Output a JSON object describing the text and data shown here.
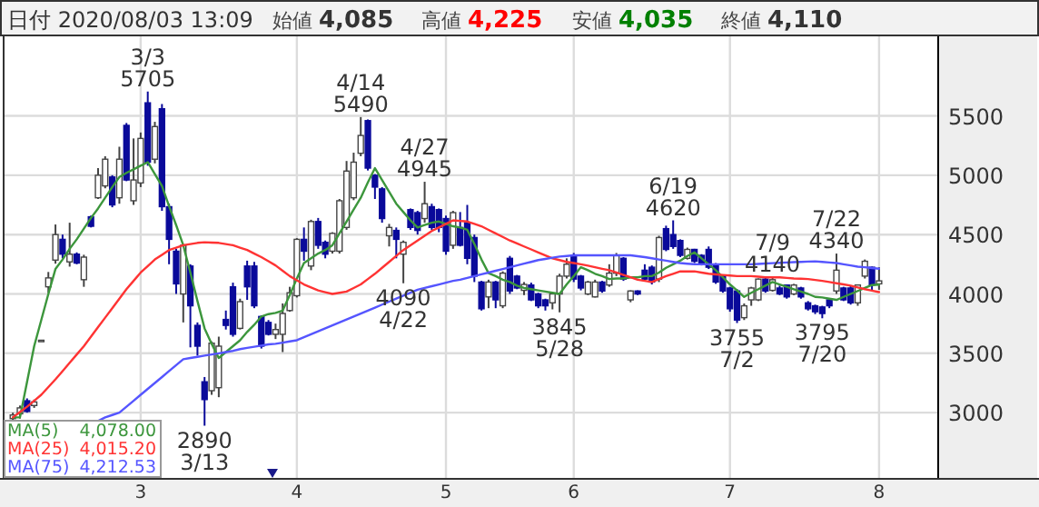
{
  "chart_data": {
    "type": "candlestick",
    "title": "日付 2020/08/03 13:09",
    "categories": [
      null,
      null,
      null,
      null,
      null,
      null,
      null,
      null,
      null,
      null,
      null,
      null,
      null,
      null,
      null,
      null,
      null,
      null,
      "3",
      null,
      null,
      null,
      null,
      null,
      null,
      null,
      null,
      null,
      null,
      null,
      null,
      null,
      null,
      null,
      null,
      null,
      null,
      null,
      null,
      null,
      "4",
      null,
      null,
      null,
      null,
      null,
      null,
      null,
      null,
      null,
      null,
      null,
      null,
      null,
      null,
      null,
      null,
      null,
      null,
      null,
      null,
      "5",
      null,
      null,
      null,
      null,
      null,
      null,
      null,
      null,
      null,
      null,
      null,
      null,
      null,
      null,
      null,
      null,
      null,
      "6",
      null,
      null,
      null,
      null,
      null,
      null,
      null,
      null,
      null,
      null,
      null,
      null,
      null,
      null,
      null,
      null,
      null,
      null,
      null,
      null,
      null,
      "7",
      null,
      null,
      null,
      null,
      null,
      null,
      null,
      null,
      null,
      null,
      null,
      null,
      null,
      null,
      null,
      null,
      null,
      null,
      null,
      null,
      "8"
    ],
    "ohlc": [
      [
        2950,
        3000,
        2930,
        2980
      ],
      [
        2990,
        3060,
        2950,
        3040
      ],
      [
        3100,
        3120,
        3000,
        3010
      ],
      [
        3060,
        3110,
        3040,
        3090
      ],
      [
        3610,
        3610,
        3610,
        3610
      ],
      [
        4060,
        4185,
        4010,
        4135
      ],
      [
        4285,
        4585,
        4255,
        4500
      ],
      [
        4460,
        4500,
        4300,
        4335
      ],
      [
        4270,
        4600,
        4230,
        4335
      ],
      [
        4335,
        4350,
        4250,
        4260
      ],
      [
        4120,
        4330,
        4060,
        4310
      ],
      [
        4650,
        4660,
        4560,
        4570
      ],
      [
        4810,
        5060,
        4800,
        5000
      ],
      [
        4910,
        5160,
        4890,
        5135
      ],
      [
        4985,
        5000,
        4730,
        4750
      ],
      [
        4810,
        5240,
        4760,
        5135
      ],
      [
        5420,
        5440,
        4950,
        4960
      ],
      [
        4785,
        5310,
        4750,
        4960
      ],
      [
        4935,
        5360,
        4900,
        5310
      ],
      [
        5610,
        5705,
        5080,
        5110
      ],
      [
        5135,
        5450,
        5100,
        5410
      ],
      [
        5560,
        5600,
        4700,
        4735
      ],
      [
        4735,
        4760,
        4250,
        4460
      ],
      [
        4360,
        4380,
        4000,
        4085
      ],
      [
        4000,
        4420,
        3760,
        4410
      ],
      [
        4235,
        4250,
        3550,
        3900
      ],
      [
        3735,
        3760,
        3480,
        3560
      ],
      [
        3260,
        3300,
        2890,
        3110
      ],
      [
        3185,
        3600,
        3150,
        3585
      ],
      [
        3210,
        3640,
        3130,
        3560
      ],
      [
        3785,
        3860,
        3700,
        3735
      ],
      [
        4060,
        4095,
        3640,
        3660
      ],
      [
        3710,
        3960,
        3700,
        3935
      ],
      [
        4235,
        4280,
        3950,
        4060
      ],
      [
        4235,
        4270,
        3880,
        3900
      ],
      [
        3810,
        3820,
        3540,
        3560
      ],
      [
        3760,
        3780,
        3650,
        3660
      ],
      [
        3660,
        3750,
        3620,
        3700
      ],
      [
        3660,
        3920,
        3510,
        3835
      ],
      [
        3860,
        4060,
        3850,
        4010
      ],
      [
        3985,
        4470,
        3970,
        4460
      ],
      [
        4460,
        4560,
        4280,
        4360
      ],
      [
        4235,
        4625,
        4200,
        4610
      ],
      [
        4610,
        4640,
        4380,
        4410
      ],
      [
        4435,
        4450,
        4300,
        4335
      ],
      [
        4360,
        4520,
        4340,
        4510
      ],
      [
        4360,
        4800,
        4340,
        4785
      ],
      [
        4560,
        5120,
        4540,
        5035
      ],
      [
        4810,
        5190,
        4790,
        5110
      ],
      [
        5185,
        5490,
        5160,
        5335
      ],
      [
        5460,
        5470,
        5040,
        5060
      ],
      [
        5000,
        5010,
        4800,
        4900
      ],
      [
        4885,
        4900,
        4600,
        4635
      ],
      [
        4490,
        4590,
        4400,
        4560
      ],
      [
        4535,
        4560,
        4300,
        4460
      ],
      [
        4335,
        4450,
        4090,
        4435
      ],
      [
        4710,
        4720,
        4540,
        4560
      ],
      [
        4685,
        4700,
        4500,
        4535
      ],
      [
        4635,
        4945,
        4600,
        4760
      ],
      [
        4735,
        4760,
        4540,
        4560
      ],
      [
        4710,
        4720,
        4520,
        4560
      ],
      [
        4635,
        4660,
        4330,
        4360
      ],
      [
        4410,
        4700,
        4380,
        4685
      ],
      [
        4560,
        4690,
        4400,
        4410
      ],
      [
        4600,
        4750,
        4250,
        4300
      ],
      [
        4475,
        4500,
        4100,
        4150
      ],
      [
        4100,
        4110,
        3860,
        3875
      ],
      [
        3975,
        4120,
        3880,
        4100
      ],
      [
        4100,
        4110,
        3880,
        3950
      ],
      [
        3900,
        4190,
        3880,
        4175
      ],
      [
        4300,
        4320,
        4000,
        4025
      ],
      [
        4150,
        4160,
        4040,
        4050
      ],
      [
        4030,
        4100,
        3990,
        4080
      ],
      [
        4075,
        4095,
        3940,
        3950
      ],
      [
        4000,
        4010,
        3880,
        3900
      ],
      [
        3950,
        3960,
        3860,
        3900
      ],
      [
        3925,
        4010,
        3870,
        4000
      ],
      [
        4000,
        4170,
        3845,
        4150
      ],
      [
        4150,
        4300,
        4130,
        4250
      ],
      [
        4325,
        4345,
        4100,
        4125
      ],
      [
        4150,
        4160,
        4030,
        4050
      ],
      [
        4000,
        4110,
        3990,
        4100
      ],
      [
        3975,
        4120,
        3970,
        4100
      ],
      [
        4100,
        4110,
        4010,
        4025
      ],
      [
        4075,
        4250,
        4060,
        4175
      ],
      [
        4175,
        4345,
        4150,
        4325
      ],
      [
        4300,
        4310,
        4110,
        4125
      ],
      [
        3950,
        4030,
        3930,
        4025
      ],
      [
        4025,
        4030,
        3990,
        4000
      ],
      [
        4200,
        4250,
        4110,
        4125
      ],
      [
        4225,
        4240,
        4080,
        4100
      ],
      [
        4125,
        4490,
        4100,
        4475
      ],
      [
        4550,
        4575,
        4360,
        4375
      ],
      [
        4500,
        4620,
        4380,
        4400
      ],
      [
        4450,
        4460,
        4310,
        4325
      ],
      [
        4300,
        4390,
        4290,
        4375
      ],
      [
        4375,
        4380,
        4260,
        4275
      ],
      [
        4325,
        4335,
        4240,
        4250
      ],
      [
        4375,
        4400,
        4210,
        4225
      ],
      [
        4250,
        4260,
        4085,
        4100
      ],
      [
        4150,
        4160,
        4010,
        4025
      ],
      [
        4050,
        4060,
        3850,
        3875
      ],
      [
        4025,
        4040,
        3755,
        3780
      ],
      [
        3800,
        3920,
        3780,
        3900
      ],
      [
        3950,
        4060,
        3900,
        4050
      ],
      [
        3950,
        4130,
        3940,
        4125
      ],
      [
        4125,
        4135,
        4010,
        4025
      ],
      [
        4030,
        4140,
        4020,
        4120
      ],
      [
        4050,
        4070,
        3990,
        4000
      ],
      [
        4075,
        4080,
        3960,
        3975
      ],
      [
        4000,
        4085,
        3990,
        4075
      ],
      [
        4050,
        4060,
        3960,
        3975
      ],
      [
        3925,
        3940,
        3860,
        3875
      ],
      [
        3900,
        3910,
        3830,
        3850
      ],
      [
        3890,
        3900,
        3795,
        3835
      ],
      [
        3950,
        3960,
        3880,
        3900
      ],
      [
        4025,
        4340,
        4000,
        4200
      ],
      [
        4050,
        4060,
        3940,
        3950
      ],
      [
        4050,
        4070,
        3910,
        3925
      ],
      [
        3925,
        4080,
        3900,
        4075
      ],
      [
        4150,
        4290,
        4130,
        4275
      ],
      [
        4225,
        4230,
        4030,
        4075
      ],
      [
        4085,
        4225,
        4035,
        4110
      ]
    ],
    "series": [
      {
        "name": "MA(5)",
        "type": "line",
        "color": "#3c963c",
        "values": [
          2960,
          2960,
          3260,
          3560,
          3780,
          4000,
          4210,
          4290,
          4380,
          4460,
          4550,
          4640,
          4720,
          4810,
          4900,
          4985,
          5020,
          5050,
          5080,
          5110,
          5010,
          4910,
          4740,
          4580,
          4410,
          4180,
          3940,
          3710,
          3580,
          3460,
          3510,
          3560,
          3610,
          3680,
          3740,
          3810,
          3830,
          3840,
          3860,
          3990,
          4130,
          4260,
          4300,
          4340,
          4370,
          4410,
          4510,
          4610,
          4710,
          4810,
          4940,
          5060,
          4960,
          4860,
          4760,
          4690,
          4620,
          4560,
          4580,
          4600,
          4610,
          4590,
          4570,
          4560,
          4540,
          4420,
          4290,
          4175,
          4150,
          4120,
          4100,
          4070,
          4050,
          4040,
          4030,
          4020,
          4010,
          4000,
          4080,
          4150,
          4225,
          4200,
          4170,
          4150,
          4125,
          4130,
          4130,
          4140,
          4140,
          4150,
          4150,
          4180,
          4220,
          4250,
          4280,
          4320,
          4350,
          4300,
          4250,
          4200,
          4140,
          4080,
          4030,
          3975,
          4010,
          4040,
          4070,
          4100,
          4080,
          4060,
          4040,
          4020,
          4000,
          3975,
          3970,
          3960,
          3950,
          3975,
          4000,
          4025,
          4050,
          4075,
          4078
        ]
      },
      {
        "name": "MA(25)",
        "type": "line",
        "color": "#ff3333",
        "values": [
          2960,
          3005,
          3050,
          3100,
          3150,
          3215,
          3280,
          3350,
          3420,
          3490,
          3560,
          3640,
          3720,
          3800,
          3880,
          3960,
          4040,
          4110,
          4180,
          4235,
          4290,
          4330,
          4370,
          4390,
          4410,
          4420,
          4430,
          4435,
          4432,
          4430,
          4420,
          4410,
          4390,
          4370,
          4340,
          4310,
          4275,
          4240,
          4195,
          4150,
          4115,
          4080,
          4055,
          4030,
          4015,
          4000,
          4010,
          4020,
          4050,
          4080,
          4125,
          4170,
          4220,
          4270,
          4320,
          4370,
          4410,
          4450,
          4490,
          4530,
          4560,
          4590,
          4620,
          4615,
          4610,
          4590,
          4570,
          4540,
          4510,
          4480,
          4450,
          4425,
          4400,
          4375,
          4350,
          4325,
          4300,
          4285,
          4270,
          4260,
          4250,
          4238,
          4225,
          4212,
          4200,
          4180,
          4160,
          4140,
          4120,
          4110,
          4100,
          4125,
          4150,
          4170,
          4190,
          4190,
          4190,
          4180,
          4170,
          4165,
          4160,
          4155,
          4150,
          4150,
          4150,
          4145,
          4140,
          4140,
          4140,
          4135,
          4130,
          4128,
          4125,
          4118,
          4110,
          4100,
          4090,
          4080,
          4070,
          4055,
          4040,
          4028,
          4015.2
        ]
      },
      {
        "name": "MA(75)",
        "type": "line",
        "color": "#5555ff",
        "values": [
          null,
          null,
          null,
          null,
          null,
          null,
          null,
          null,
          null,
          null,
          null,
          null,
          2930,
          2960,
          2980,
          3000,
          3050,
          3100,
          3150,
          3200,
          3250,
          3300,
          3350,
          3400,
          3450,
          3460,
          3470,
          3480,
          3490,
          3500,
          3510,
          3520,
          3535,
          3545,
          3555,
          3565,
          3575,
          3580,
          3590,
          3600,
          3610,
          3635,
          3660,
          3685,
          3710,
          3735,
          3760,
          3785,
          3810,
          3835,
          3860,
          3885,
          3910,
          3935,
          3960,
          3985,
          4010,
          4035,
          4050,
          4065,
          4080,
          4095,
          4110,
          4120,
          4135,
          4150,
          4165,
          4180,
          4195,
          4210,
          4225,
          4240,
          4255,
          4270,
          4285,
          4295,
          4305,
          4315,
          4320,
          4325,
          4325,
          4325,
          4325,
          4325,
          4325,
          4325,
          4325,
          4325,
          4318,
          4310,
          4300,
          4290,
          4280,
          4270,
          4260,
          4255,
          4250,
          4250,
          4250,
          4250,
          4250,
          4250,
          4250,
          4250,
          4250,
          4253,
          4256,
          4259,
          4262,
          4265,
          4268,
          4270,
          4273,
          4275,
          4270,
          4265,
          4260,
          4250,
          4240,
          4230,
          4225,
          4218,
          4212.53
        ]
      }
    ],
    "ylim": [
      2450,
      6170
    ],
    "yticks": [
      3000,
      3500,
      4000,
      4500,
      5000,
      5500
    ],
    "grid": true,
    "legend": "bottom left",
    "annotations": [
      "始値 4,085",
      "高値 4,225",
      "安値 4,035",
      "終値 4,110",
      "4,078.00",
      "4,015.20",
      "4,212.53",
      {
        "text": "3/3\n5705",
        "y": 5705
      },
      {
        "text": "2890\n3/13",
        "y": 2890
      },
      {
        "text": "4/14\n5490",
        "y": 5490
      },
      {
        "text": "4090\n4/22",
        "y": 4090
      },
      {
        "text": "4/27\n4945",
        "y": 4945
      },
      {
        "text": "3845\n5/28",
        "y": 3845
      },
      {
        "text": "6/19\n4620",
        "y": 4620
      },
      {
        "text": "3755\n7/2",
        "y": 3755
      },
      {
        "text": "7/9\n4140",
        "y": 4140
      },
      {
        "text": "3795\n7/20",
        "y": 3795
      },
      {
        "text": "7/22\n4340",
        "y": 4340
      }
    ]
  }
}
